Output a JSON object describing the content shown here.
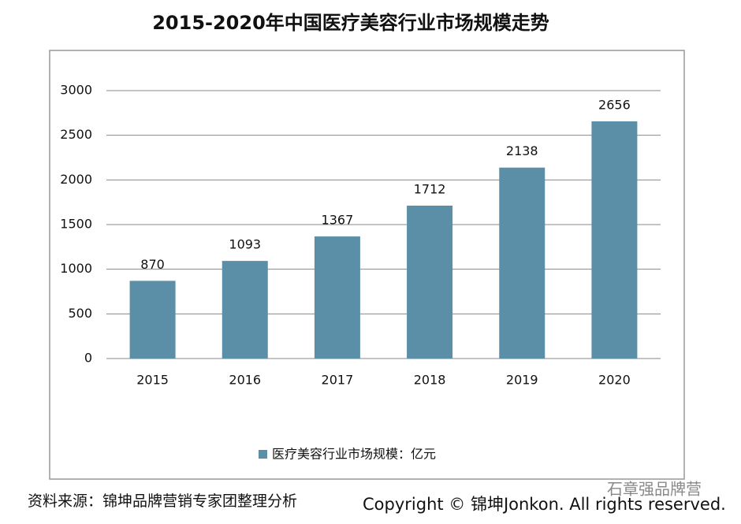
{
  "chart_data": {
    "type": "bar",
    "title": "2015-2020年中国医疗美容行业市场规模走势",
    "categories": [
      "2015",
      "2016",
      "2017",
      "2018",
      "2019",
      "2020"
    ],
    "series": [
      {
        "name": "医疗美容行业市场规模：亿元",
        "color": "#5b8fa7",
        "values": [
          870,
          1093,
          1367,
          1712,
          2138,
          2656
        ]
      }
    ],
    "ylim": [
      0,
      3000
    ],
    "yticks": [
      0,
      500,
      1000,
      1500,
      2000,
      2500,
      3000
    ],
    "grid": true,
    "legend": "bottom",
    "source": "资料来源：锦坤品牌营销专家团整理分析",
    "copyright": "Copyright © 锦坤Jonkon. All rights reserved.",
    "watermark": "石章强品牌营"
  }
}
